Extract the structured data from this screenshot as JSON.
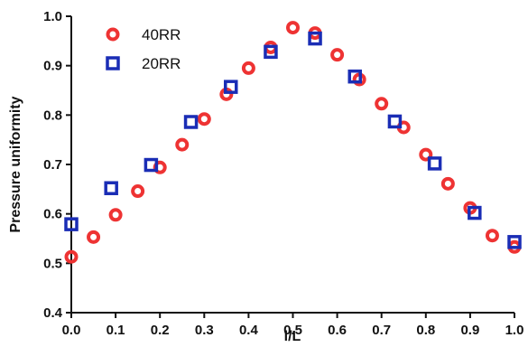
{
  "chart_data": {
    "type": "scatter",
    "title": "",
    "xlabel": "l/L",
    "ylabel": "Pressure uniformity",
    "xlim": [
      0.0,
      1.0
    ],
    "ylim": [
      0.4,
      1.0
    ],
    "xticks": [
      "0.0",
      "0.1",
      "0.2",
      "0.3",
      "0.4",
      "0.5",
      "0.6",
      "0.7",
      "0.8",
      "0.9",
      "1.0"
    ],
    "yticks": [
      "0.4",
      "0.5",
      "0.6",
      "0.7",
      "0.8",
      "0.9",
      "1.0"
    ],
    "grid": false,
    "legend": "top-left",
    "series": [
      {
        "name": "40RR",
        "marker": "circle",
        "color": "#ee3333",
        "x": [
          0.0,
          0.05,
          0.1,
          0.15,
          0.2,
          0.25,
          0.3,
          0.35,
          0.4,
          0.45,
          0.5,
          0.55,
          0.6,
          0.65,
          0.7,
          0.75,
          0.8,
          0.85,
          0.9,
          0.95,
          1.0
        ],
        "y": [
          0.513,
          0.553,
          0.598,
          0.646,
          0.694,
          0.74,
          0.792,
          0.842,
          0.895,
          0.937,
          0.977,
          0.966,
          0.922,
          0.872,
          0.823,
          0.775,
          0.72,
          0.661,
          0.612,
          0.556,
          0.533
        ]
      },
      {
        "name": "20RR",
        "marker": "square",
        "color": "#1a2db5",
        "x": [
          0.0,
          0.09,
          0.18,
          0.27,
          0.36,
          0.45,
          0.55,
          0.64,
          0.73,
          0.82,
          0.91,
          1.0
        ],
        "y": [
          0.579,
          0.652,
          0.699,
          0.786,
          0.857,
          0.928,
          0.955,
          0.878,
          0.787,
          0.702,
          0.602,
          0.543
        ]
      }
    ]
  }
}
